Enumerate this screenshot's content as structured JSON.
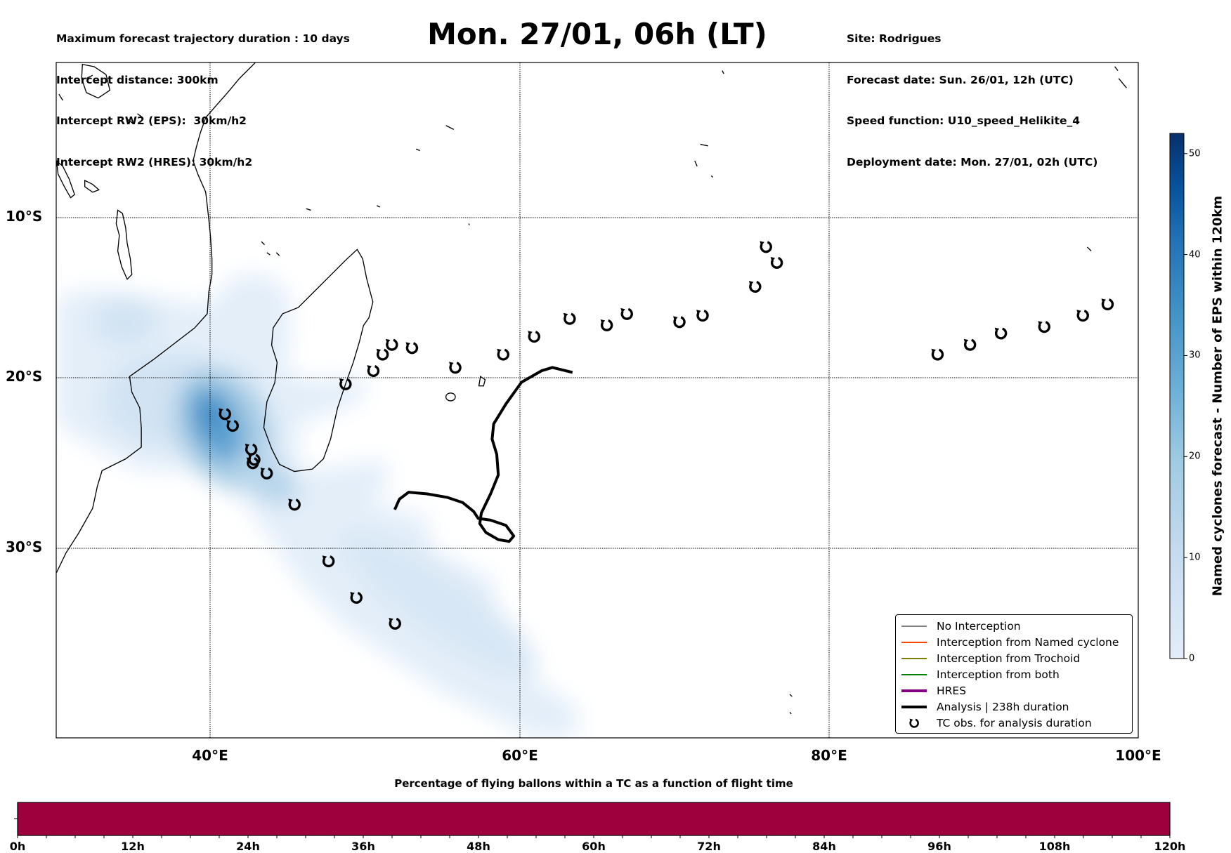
{
  "header_left": [
    "Maximum forecast trajectory duration : 10 days",
    "Intercept distance: 300km",
    "Intercept RW2 (EPS):  30km/h2",
    "Intercept RW2 (HRES): 30km/h2"
  ],
  "title": "Mon. 27/01, 06h (LT)",
  "header_right": [
    "Site: Rodrigues",
    "Forecast date: Sun. 26/01, 12h (UTC)",
    "Speed function: U10_speed_Helikite_4",
    "Deployment date: Mon. 27/01, 02h (UTC)"
  ],
  "chart_data": [
    {
      "type": "map",
      "projection": "mercator",
      "lon_range": [
        30,
        100
      ],
      "lat_range": [
        0,
        -40
      ],
      "lon_ticks": [
        {
          "value": 40,
          "label": "40°E"
        },
        {
          "value": 60,
          "label": "60°E"
        },
        {
          "value": 80,
          "label": "80°E"
        },
        {
          "value": 100,
          "label": "100°E"
        }
      ],
      "lat_ticks": [
        {
          "value": -10,
          "label": "10°S"
        },
        {
          "value": -20,
          "label": "20°S"
        },
        {
          "value": -30,
          "label": "30°S"
        }
      ],
      "grid": true,
      "analysis_track": {
        "name": "Analysis | 238h duration",
        "color": "#000000",
        "points": [
          [
            51.9,
            -27.7
          ],
          [
            52.2,
            -27.1
          ],
          [
            52.8,
            -26.7
          ],
          [
            54.0,
            -26.8
          ],
          [
            55.3,
            -27.0
          ],
          [
            56.3,
            -27.3
          ],
          [
            57.0,
            -27.8
          ],
          [
            57.3,
            -28.2
          ],
          [
            58.1,
            -28.3
          ],
          [
            59.1,
            -28.6
          ],
          [
            59.6,
            -29.2
          ],
          [
            59.3,
            -29.5
          ],
          [
            58.6,
            -29.4
          ],
          [
            57.8,
            -29.0
          ],
          [
            57.4,
            -28.5
          ],
          [
            57.5,
            -27.9
          ],
          [
            58.1,
            -26.8
          ],
          [
            58.6,
            -25.7
          ],
          [
            58.5,
            -24.5
          ],
          [
            58.2,
            -23.6
          ],
          [
            58.3,
            -22.7
          ],
          [
            59.1,
            -21.5
          ],
          [
            60.1,
            -20.2
          ],
          [
            61.4,
            -19.5
          ],
          [
            62.1,
            -19.3
          ],
          [
            63.4,
            -19.6
          ]
        ]
      },
      "tc_obs": [
        [
          40.9,
          -22.1
        ],
        [
          41.4,
          -22.8
        ],
        [
          42.6,
          -24.2
        ],
        [
          42.8,
          -24.8
        ],
        [
          42.7,
          -25.0
        ],
        [
          43.6,
          -25.6
        ],
        [
          45.4,
          -27.4
        ],
        [
          47.6,
          -30.6
        ],
        [
          49.4,
          -32.6
        ],
        [
          51.9,
          -34.0
        ],
        [
          48.7,
          -20.3
        ],
        [
          50.5,
          -19.5
        ],
        [
          51.1,
          -18.5
        ],
        [
          51.7,
          -17.9
        ],
        [
          53.0,
          -18.1
        ],
        [
          55.8,
          -19.3
        ],
        [
          58.9,
          -18.5
        ],
        [
          60.9,
          -17.4
        ],
        [
          63.2,
          -16.3
        ],
        [
          65.6,
          -16.7
        ],
        [
          66.9,
          -16.0
        ],
        [
          70.3,
          -16.5
        ],
        [
          71.8,
          -16.1
        ],
        [
          75.2,
          -14.3
        ],
        [
          75.9,
          -11.8
        ],
        [
          76.6,
          -12.8
        ],
        [
          87.0,
          -18.5
        ],
        [
          89.1,
          -17.9
        ],
        [
          91.1,
          -17.2
        ],
        [
          93.9,
          -16.8
        ],
        [
          96.4,
          -16.1
        ],
        [
          98.0,
          -15.4
        ]
      ],
      "density_peak": {
        "value_max": 45,
        "center": [
          40.5,
          -22.5
        ]
      },
      "legend": {
        "placement": "bottom-right",
        "entries": [
          {
            "label": "No Interception",
            "color": "#808080"
          },
          {
            "label": "Interception from Named cyclone",
            "color": "#ff4500"
          },
          {
            "label": "Interception from Trochoid",
            "color": "#808000"
          },
          {
            "label": "Interception from both",
            "color": "#008000"
          },
          {
            "label": "HRES",
            "color": "#800080"
          },
          {
            "label": "Analysis | 238h duration",
            "color": "#000000"
          },
          {
            "label": "TC obs. for analysis duration",
            "color": "#000000"
          }
        ]
      }
    },
    {
      "type": "colorbar",
      "label": "Named cyclones forecast - Number of EPS within 120km",
      "range": [
        0,
        52
      ],
      "ticks": [
        "0",
        "10",
        "20",
        "30",
        "40",
        "50"
      ],
      "colormap": [
        "#e3eef9",
        "#c6dbef",
        "#9ecae1",
        "#6baed6",
        "#4292c6",
        "#2171b5",
        "#08519c",
        "#08306b"
      ]
    },
    {
      "type": "bar",
      "title": "Percentage of flying ballons within a TC as a function of flight time",
      "x_range": [
        0,
        120
      ],
      "x_ticks": [
        "0h",
        "12h",
        "24h",
        "36h",
        "48h",
        "60h",
        "72h",
        "84h",
        "96h",
        "108h",
        "120h"
      ],
      "fill_color": "#9e003e"
    }
  ]
}
